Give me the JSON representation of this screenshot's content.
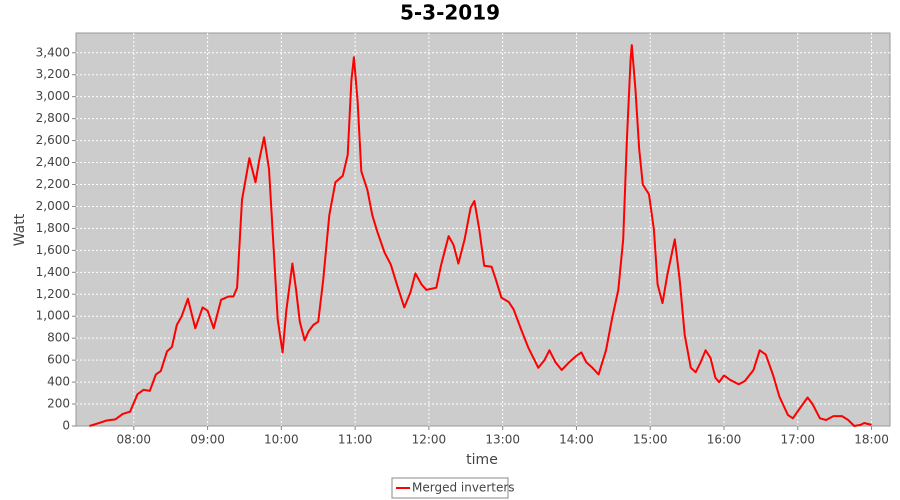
{
  "chart_data": {
    "type": "line",
    "title": "5-3-2019",
    "x_label": "time",
    "y_label": "Watt",
    "x": [
      "07:24",
      "07:31",
      "07:38",
      "07:45",
      "07:51",
      "07:57",
      "08:03",
      "08:08",
      "08:13",
      "08:18",
      "08:22",
      "08:27",
      "08:31",
      "08:35",
      "08:39",
      "08:44",
      "08:50",
      "08:56",
      "09:00",
      "09:05",
      "09:11",
      "09:17",
      "09:21",
      "09:24",
      "09:28",
      "09:34",
      "09:39",
      "09:42",
      "09:46",
      "09:50",
      "09:54",
      "09:57",
      "10:01",
      "10:04",
      "10:09",
      "10:12",
      "10:15",
      "10:19",
      "10:22",
      "10:26",
      "10:30",
      "10:34",
      "10:39",
      "10:44",
      "10:50",
      "10:54",
      "10:57",
      "10:59",
      "11:02",
      "11:05",
      "11:10",
      "11:14",
      "11:18",
      "11:24",
      "11:29",
      "11:34",
      "11:40",
      "11:45",
      "11:49",
      "11:54",
      "11:58",
      "12:06",
      "12:10",
      "12:16",
      "12:20",
      "12:24",
      "12:29",
      "12:34",
      "12:37",
      "12:41",
      "12:45",
      "12:51",
      "12:54",
      "12:59",
      "13:05",
      "13:09",
      "13:15",
      "13:21",
      "13:29",
      "13:34",
      "13:38",
      "13:43",
      "13:48",
      "13:54",
      "14:00",
      "14:04",
      "14:08",
      "14:13",
      "14:18",
      "14:24",
      "14:29",
      "14:34",
      "14:38",
      "14:41",
      "14:44",
      "14:45",
      "14:48",
      "14:51",
      "14:54",
      "14:59",
      "15:03",
      "15:06",
      "15:10",
      "15:14",
      "15:20",
      "15:24",
      "15:28",
      "15:33",
      "15:37",
      "15:41",
      "15:45",
      "15:49",
      "15:53",
      "15:56",
      "16:00",
      "16:05",
      "16:12",
      "16:17",
      "16:24",
      "16:29",
      "16:34",
      "16:40",
      "16:45",
      "16:52",
      "16:56",
      "17:01",
      "17:08",
      "17:12",
      "17:18",
      "17:23",
      "17:29",
      "17:36",
      "17:41",
      "17:46",
      "17:51",
      "17:54",
      "18:00"
    ],
    "series": [
      {
        "name": "Merged inverters",
        "color": "#ff0000",
        "values": [
          0,
          25,
          50,
          60,
          110,
          130,
          290,
          330,
          320,
          470,
          500,
          680,
          720,
          920,
          1000,
          1160,
          890,
          1080,
          1050,
          890,
          1150,
          1180,
          1180,
          1260,
          2060,
          2440,
          2220,
          2420,
          2630,
          2340,
          1560,
          970,
          670,
          1050,
          1480,
          1240,
          950,
          780,
          860,
          920,
          950,
          1330,
          1920,
          2220,
          2280,
          2470,
          3150,
          3360,
          2960,
          2320,
          2150,
          1920,
          1770,
          1580,
          1470,
          1290,
          1080,
          1220,
          1390,
          1290,
          1240,
          1260,
          1470,
          1730,
          1650,
          1480,
          1700,
          1990,
          2050,
          1790,
          1460,
          1450,
          1350,
          1170,
          1130,
          1060,
          880,
          710,
          530,
          600,
          690,
          580,
          510,
          580,
          640,
          670,
          580,
          530,
          470,
          690,
          980,
          1240,
          1700,
          2610,
          3340,
          3470,
          3060,
          2520,
          2200,
          2110,
          1790,
          1290,
          1120,
          1380,
          1700,
          1330,
          830,
          530,
          490,
          580,
          690,
          620,
          440,
          400,
          460,
          420,
          380,
          410,
          510,
          690,
          650,
          460,
          270,
          100,
          70,
          150,
          260,
          200,
          70,
          55,
          90,
          90,
          55,
          0,
          10,
          27,
          10
        ]
      }
    ],
    "xlim": [
      "07:13",
      "18:15"
    ],
    "xticks": [
      "08:00",
      "09:00",
      "10:00",
      "11:00",
      "12:00",
      "13:00",
      "14:00",
      "15:00",
      "16:00",
      "17:00",
      "18:00"
    ],
    "ylim": [
      0,
      3580
    ],
    "yticks": [
      0,
      200,
      400,
      600,
      800,
      {
        "value": 1000,
        "label": "1,000"
      },
      {
        "value": 1200,
        "label": "1,200"
      },
      {
        "value": 1400,
        "label": "1,400"
      },
      {
        "value": 1600,
        "label": "1,600"
      },
      {
        "value": 1800,
        "label": "1,800"
      },
      {
        "value": 2000,
        "label": "2,000"
      },
      {
        "value": 2200,
        "label": "2,200"
      },
      {
        "value": 2400,
        "label": "2,400"
      },
      {
        "value": 2600,
        "label": "2,600"
      },
      {
        "value": 2800,
        "label": "2,800"
      },
      {
        "value": 3000,
        "label": "3,000"
      },
      {
        "value": 3200,
        "label": "3,200"
      },
      {
        "value": 3400,
        "label": "3,400"
      }
    ],
    "grid": true,
    "legend": "bottom"
  }
}
